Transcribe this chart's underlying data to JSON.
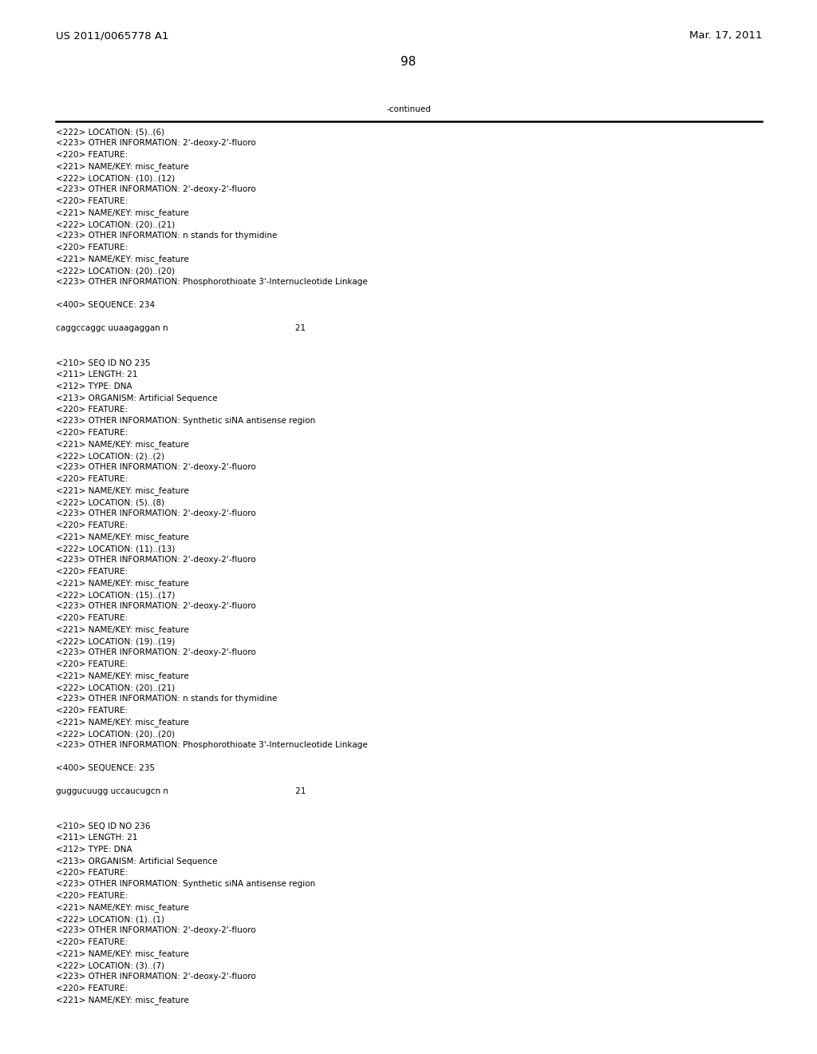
{
  "header_left": "US 2011/0065778 A1",
  "header_right": "Mar. 17, 2011",
  "page_number": "98",
  "continued_label": "-continued",
  "background_color": "#ffffff",
  "text_color": "#000000",
  "font_size_header": 9.5,
  "font_size_body": 7.5,
  "font_size_page": 11,
  "lines": [
    "<222> LOCATION: (5)..(6)",
    "<223> OTHER INFORMATION: 2'-deoxy-2'-fluoro",
    "<220> FEATURE:",
    "<221> NAME/KEY: misc_feature",
    "<222> LOCATION: (10)..(12)",
    "<223> OTHER INFORMATION: 2'-deoxy-2'-fluoro",
    "<220> FEATURE:",
    "<221> NAME/KEY: misc_feature",
    "<222> LOCATION: (20)..(21)",
    "<223> OTHER INFORMATION: n stands for thymidine",
    "<220> FEATURE:",
    "<221> NAME/KEY: misc_feature",
    "<222> LOCATION: (20)..(20)",
    "<223> OTHER INFORMATION: Phosphorothioate 3'-Internucleotide Linkage",
    "",
    "<400> SEQUENCE: 234",
    "",
    "caggccaggc uuaagaggan n                                                 21",
    "",
    "",
    "<210> SEQ ID NO 235",
    "<211> LENGTH: 21",
    "<212> TYPE: DNA",
    "<213> ORGANISM: Artificial Sequence",
    "<220> FEATURE:",
    "<223> OTHER INFORMATION: Synthetic siNA antisense region",
    "<220> FEATURE:",
    "<221> NAME/KEY: misc_feature",
    "<222> LOCATION: (2)..(2)",
    "<223> OTHER INFORMATION: 2'-deoxy-2'-fluoro",
    "<220> FEATURE:",
    "<221> NAME/KEY: misc_feature",
    "<222> LOCATION: (5)..(8)",
    "<223> OTHER INFORMATION: 2'-deoxy-2'-fluoro",
    "<220> FEATURE:",
    "<221> NAME/KEY: misc_feature",
    "<222> LOCATION: (11)..(13)",
    "<223> OTHER INFORMATION: 2'-deoxy-2'-fluoro",
    "<220> FEATURE:",
    "<221> NAME/KEY: misc_feature",
    "<222> LOCATION: (15)..(17)",
    "<223> OTHER INFORMATION: 2'-deoxy-2'-fluoro",
    "<220> FEATURE:",
    "<221> NAME/KEY: misc_feature",
    "<222> LOCATION: (19)..(19)",
    "<223> OTHER INFORMATION: 2'-deoxy-2'-fluoro",
    "<220> FEATURE:",
    "<221> NAME/KEY: misc_feature",
    "<222> LOCATION: (20)..(21)",
    "<223> OTHER INFORMATION: n stands for thymidine",
    "<220> FEATURE:",
    "<221> NAME/KEY: misc_feature",
    "<222> LOCATION: (20)..(20)",
    "<223> OTHER INFORMATION: Phosphorothioate 3'-Internucleotide Linkage",
    "",
    "<400> SEQUENCE: 235",
    "",
    "guggucuugg uccaucugcn n                                                 21",
    "",
    "",
    "<210> SEQ ID NO 236",
    "<211> LENGTH: 21",
    "<212> TYPE: DNA",
    "<213> ORGANISM: Artificial Sequence",
    "<220> FEATURE:",
    "<223> OTHER INFORMATION: Synthetic siNA antisense region",
    "<220> FEATURE:",
    "<221> NAME/KEY: misc_feature",
    "<222> LOCATION: (1)..(1)",
    "<223> OTHER INFORMATION: 2'-deoxy-2'-fluoro",
    "<220> FEATURE:",
    "<221> NAME/KEY: misc_feature",
    "<222> LOCATION: (3)..(7)",
    "<223> OTHER INFORMATION: 2'-deoxy-2'-fluoro",
    "<220> FEATURE:",
    "<221> NAME/KEY: misc_feature"
  ]
}
